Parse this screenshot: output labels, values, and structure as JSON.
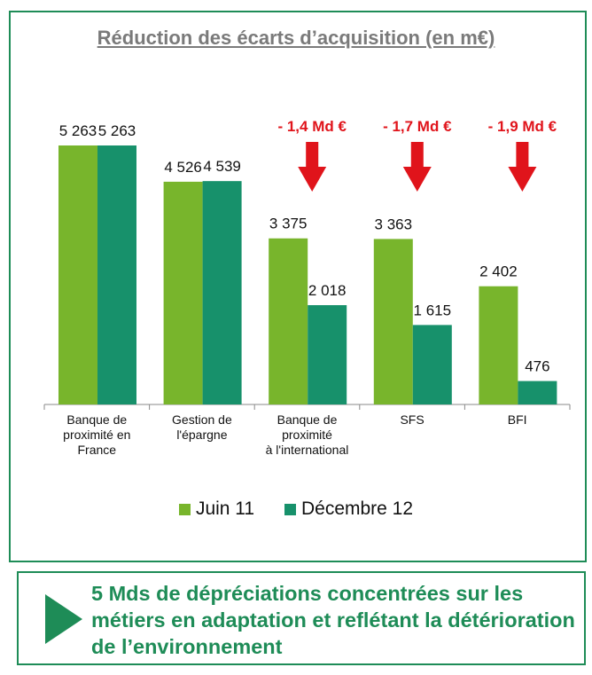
{
  "title": "Réduction des écarts d’acquisition (en m€)",
  "colors": {
    "juin": "#78b52c",
    "dec": "#17916b",
    "delta": "#e0141b",
    "frame": "#1e8c57"
  },
  "chart_data": {
    "type": "bar",
    "title": "Réduction des écarts d’acquisition (en m€)",
    "categories": [
      [
        "Banque de",
        "proximité en",
        "France"
      ],
      [
        "Gestion de",
        "l'épargne"
      ],
      [
        "Banque de",
        "proximité",
        "à l'international"
      ],
      [
        "SFS"
      ],
      [
        "BFI"
      ]
    ],
    "series": [
      {
        "name": "Juin 11",
        "values": [
          5263,
          4526,
          3375,
          3363,
          2402
        ],
        "labels": [
          "5 263",
          "4 526",
          "3 375",
          "3 363",
          "2 402"
        ]
      },
      {
        "name": "Décembre 12",
        "values": [
          5263,
          4539,
          2018,
          1615,
          476
        ],
        "labels": [
          "5 263",
          "4 539",
          "2 018",
          "1 615",
          "476"
        ]
      }
    ],
    "deltas": [
      null,
      null,
      "- 1,4 Md €",
      "- 1,7 Md €",
      "- 1,9 Md €"
    ],
    "ylim": [
      0,
      6000
    ],
    "grid": false,
    "legend_position": "bottom"
  },
  "legend": {
    "juin": "Juin 11",
    "dec": "Décembre 12"
  },
  "callout": {
    "text": "5 Mds de dépréciations concentrées sur les métiers en adaptation et reflétant la détérioration de l’environnement"
  }
}
